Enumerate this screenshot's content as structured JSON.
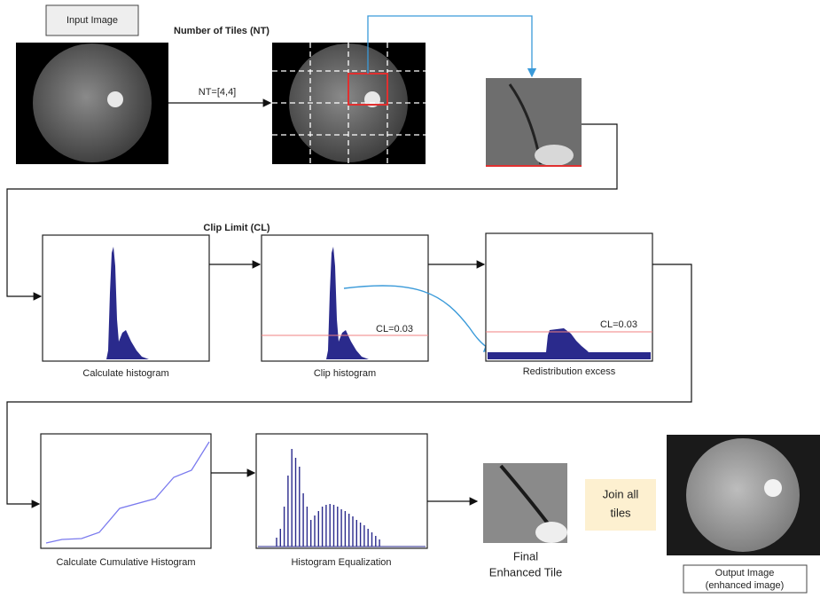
{
  "input_label": "Input Image",
  "tiles_title": "Number of Tiles (NT)",
  "nt_label": "NT=[4,4]",
  "clip_title": "Clip Limit (CL)",
  "steps": [
    {
      "caption": "Calculate histogram"
    },
    {
      "caption": "Clip histogram",
      "cl_label": "CL=0.03"
    },
    {
      "caption": "Redistribution excess",
      "cl_label": "CL=0.03"
    },
    {
      "caption": "Calculate Cumulative Histogram"
    },
    {
      "caption": "Histogram Equalization"
    }
  ],
  "final_tile": [
    "Final",
    "Enhanced Tile"
  ],
  "join": [
    "Join all",
    "tiles"
  ],
  "output_label": [
    "Output Image",
    "(enhanced image)"
  ]
}
